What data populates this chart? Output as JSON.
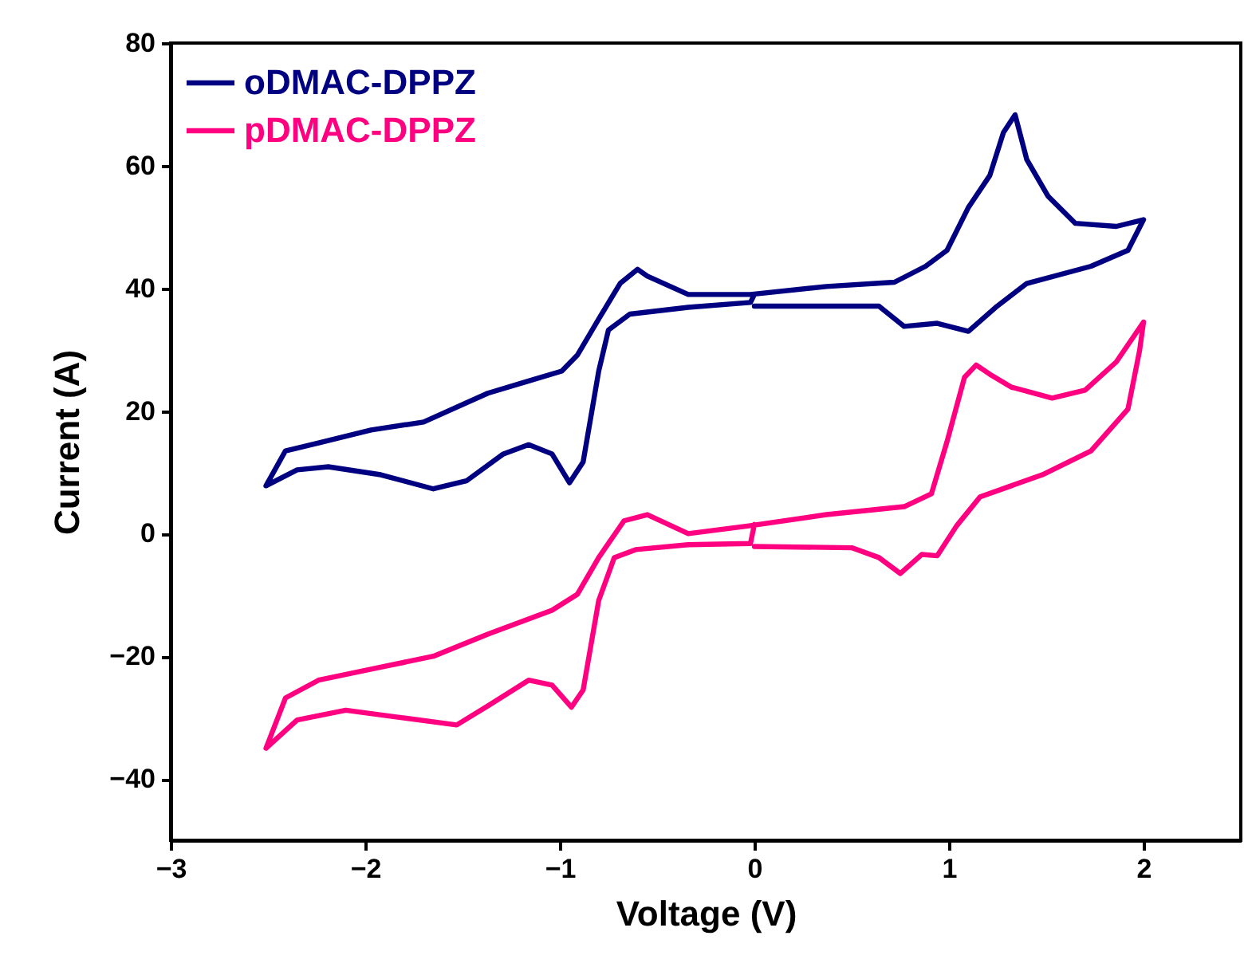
{
  "chart_data": {
    "type": "line",
    "xlabel": "Voltage (V)",
    "ylabel": "Current (A)",
    "xlim": [
      -3,
      2.5
    ],
    "xticks": [
      -3,
      -2,
      -1,
      0,
      1,
      2
    ],
    "ylim": [
      -50,
      80
    ],
    "yticks": [
      -40,
      -20,
      0,
      20,
      40,
      60,
      80
    ],
    "grid": false,
    "legend": "top left",
    "marker": "none",
    "line_style": "solid",
    "series": [
      {
        "name": "oDMAC-DPPZ",
        "color": "#000080",
        "x": [
          0,
          0.64,
          0.77,
          0.94,
          1.1,
          1.24,
          1.4,
          1.73,
          1.92,
          2.0,
          1.86,
          1.65,
          1.51,
          1.4,
          1.34,
          1.28,
          1.21,
          1.1,
          0.99,
          0.88,
          0.72,
          0.37,
          -0.02,
          -0.34,
          -0.55,
          -0.6,
          -0.69,
          -0.8,
          -0.91,
          -0.99,
          -1.16,
          -1.37,
          -1.7,
          -1.97,
          -2.24,
          -2.41,
          -2.51,
          -2.35,
          -2.19,
          -1.92,
          -1.65,
          -1.48,
          -1.29,
          -1.16,
          -1.04,
          -0.95,
          -0.88,
          -0.8,
          -0.75,
          -0.64,
          -0.34,
          -0.02,
          0
        ],
        "values": [
          37.1,
          37.1,
          33.8,
          34.3,
          33,
          36.9,
          40.8,
          43.6,
          46.2,
          51.2,
          50.1,
          50.6,
          55,
          61,
          68.3,
          65.4,
          58.4,
          53.2,
          46.2,
          43.6,
          41,
          40.3,
          39,
          39,
          42,
          43.1,
          40.8,
          35,
          29.1,
          26.5,
          24.9,
          22.9,
          18.2,
          16.9,
          14.8,
          13.5,
          7.8,
          10.4,
          10.9,
          9.6,
          7.3,
          8.6,
          13,
          14.5,
          13,
          8.3,
          11.7,
          26.5,
          33.2,
          35.8,
          36.9,
          37.7,
          39
        ]
      },
      {
        "name": "pDMAC-DPPZ",
        "color": "#ff0080",
        "x": [
          0,
          0.5,
          0.64,
          0.75,
          0.86,
          0.94,
          1.04,
          1.16,
          1.48,
          1.73,
          1.92,
          1.98,
          2.0,
          1.86,
          1.7,
          1.53,
          1.32,
          1.21,
          1.14,
          1.08,
          0.99,
          0.91,
          0.77,
          0.37,
          -0.02,
          -0.34,
          -0.55,
          -0.67,
          -0.8,
          -0.91,
          -1.04,
          -1.37,
          -1.65,
          -1.97,
          -2.24,
          -2.41,
          -2.51,
          -2.35,
          -2.1,
          -1.84,
          -1.53,
          -1.37,
          -1.16,
          -1.04,
          -0.94,
          -0.88,
          -0.8,
          -0.72,
          -0.61,
          -0.34,
          -0.02,
          0
        ],
        "values": [
          -2.1,
          -2.3,
          -3.9,
          -6.5,
          -3.4,
          -3.6,
          1.3,
          6,
          9.6,
          13.5,
          20.3,
          29.9,
          34.5,
          28,
          23.4,
          22.1,
          23.9,
          26,
          27.5,
          25.5,
          15,
          6.5,
          4.4,
          3.1,
          1.3,
          0,
          3.1,
          2.1,
          -3.9,
          -9.9,
          -12.5,
          -16.4,
          -20,
          -22.1,
          -23.9,
          -26.8,
          -35,
          -30.4,
          -28.8,
          -29.9,
          -31.2,
          -28.1,
          -23.9,
          -24.7,
          -28.3,
          -25.5,
          -10.9,
          -3.9,
          -2.6,
          -1.8,
          -1.6,
          1.5
        ]
      }
    ]
  }
}
